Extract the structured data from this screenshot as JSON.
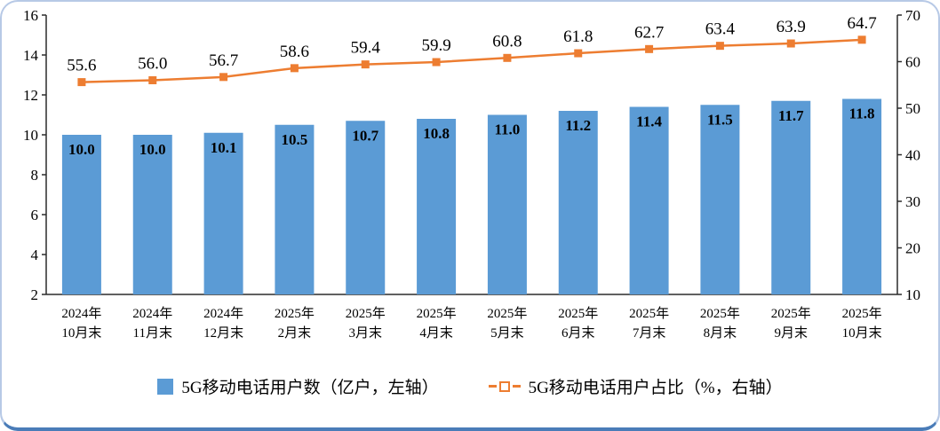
{
  "chart_data": {
    "type": "combo",
    "categories": [
      [
        "2024年",
        "10月末"
      ],
      [
        "2024年",
        "11月末"
      ],
      [
        "2024年",
        "12月末"
      ],
      [
        "2025年",
        "2月末"
      ],
      [
        "2025年",
        "3月末"
      ],
      [
        "2025年",
        "4月末"
      ],
      [
        "2025年",
        "5月末"
      ],
      [
        "2025年",
        "6月末"
      ],
      [
        "2025年",
        "7月末"
      ],
      [
        "2025年",
        "8月末"
      ],
      [
        "2025年",
        "9月末"
      ],
      [
        "2025年",
        "10月末"
      ]
    ],
    "series": [
      {
        "name": "5G移动电话用户数（亿户，左轴）",
        "type": "bar",
        "axis": "left",
        "color": "#5b9bd5",
        "values": [
          10.0,
          10.0,
          10.1,
          10.5,
          10.7,
          10.8,
          11.0,
          11.2,
          11.4,
          11.5,
          11.7,
          11.8
        ]
      },
      {
        "name": "5G移动电话用户占比（%，右轴）",
        "type": "line",
        "axis": "right",
        "color": "#ed7d31",
        "values": [
          55.6,
          56.0,
          56.7,
          58.6,
          59.4,
          59.9,
          60.8,
          61.8,
          62.7,
          63.4,
          63.9,
          64.7
        ]
      }
    ],
    "left_axis": {
      "min": 2,
      "max": 16,
      "step": 2
    },
    "right_axis": {
      "min": 10,
      "max": 70,
      "step": 10
    },
    "grid": false,
    "title": "",
    "legend_position": "bottom"
  },
  "legend": {
    "bar_label": "5G移动电话用户数（亿户，左轴）",
    "line_label": "5G移动电话用户占比（%，右轴）"
  },
  "colors": {
    "bar": "#5b9bd5",
    "line": "#ed7d31",
    "frame_border": "#b7c9e6",
    "frame_bottom": "#4a7cb8"
  }
}
